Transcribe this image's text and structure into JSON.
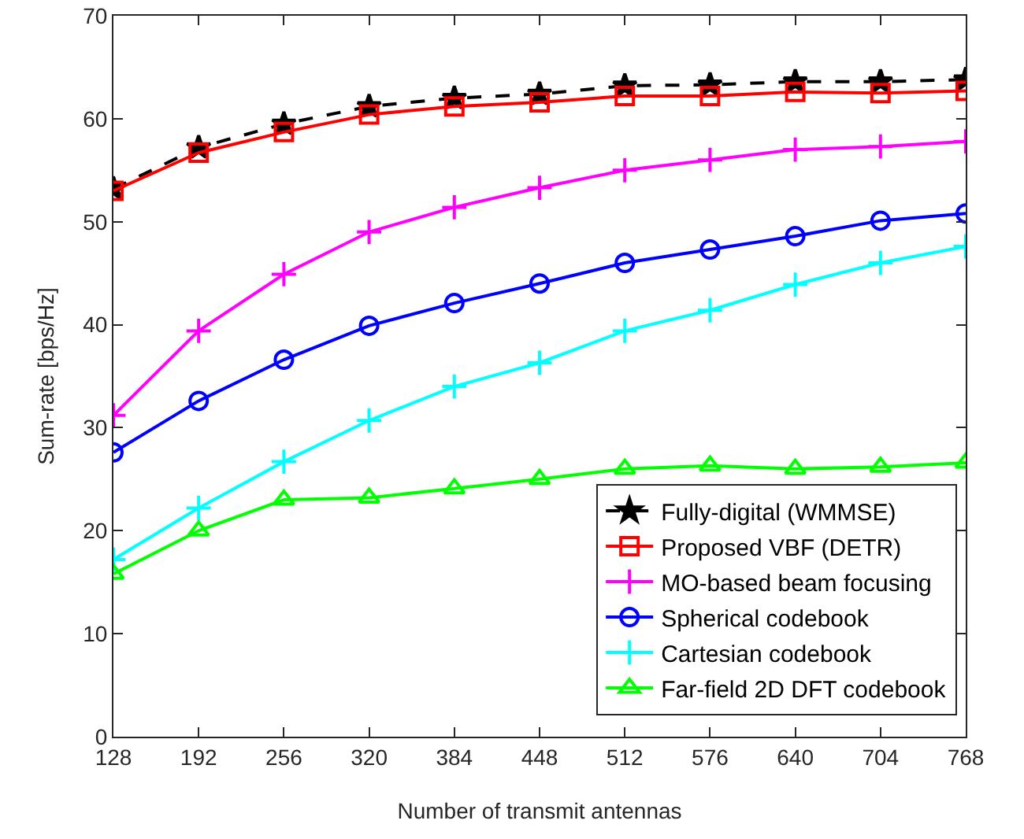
{
  "chart_data": {
    "type": "line",
    "xlabel": "Number of transmit antennas",
    "ylabel": "Sum-rate [bps/Hz]",
    "x": [
      128,
      192,
      256,
      320,
      384,
      448,
      512,
      576,
      640,
      704,
      768
    ],
    "xlim": [
      128,
      768
    ],
    "xticks": [
      128,
      192,
      256,
      320,
      384,
      448,
      512,
      576,
      640,
      704,
      768
    ],
    "ylim": [
      0,
      70
    ],
    "yticks": [
      0,
      10,
      20,
      30,
      40,
      50,
      60,
      70
    ],
    "grid": false,
    "legend": "bottom right",
    "series": [
      {
        "name": "Fully-digital (WMMSE)",
        "color": "#000000",
        "marker": "star",
        "line_style": "dashed",
        "values": [
          53.2,
          57.2,
          59.5,
          61.2,
          62.0,
          62.4,
          63.2,
          63.3,
          63.6,
          63.6,
          63.8
        ]
      },
      {
        "name": "Proposed VBF (DETR)",
        "color": "#ff0000",
        "marker": "square",
        "line_style": "solid",
        "values": [
          53.0,
          56.7,
          58.7,
          60.4,
          61.2,
          61.6,
          62.2,
          62.2,
          62.6,
          62.5,
          62.7
        ]
      },
      {
        "name": "MO-based beam focusing",
        "color": "#ff00ff",
        "marker": "cross",
        "line_style": "solid",
        "values": [
          31.2,
          39.4,
          44.9,
          49.0,
          51.4,
          53.3,
          55.0,
          56.0,
          57.0,
          57.3,
          57.8
        ]
      },
      {
        "name": "Spherical codebook",
        "color": "#0000ff",
        "marker": "circle",
        "line_style": "solid",
        "values": [
          27.6,
          32.6,
          36.6,
          39.9,
          42.1,
          44.0,
          46.0,
          47.3,
          48.6,
          50.1,
          50.8
        ]
      },
      {
        "name": "Cartesian codebook",
        "color": "#00ffff",
        "marker": "cross",
        "line_style": "solid",
        "values": [
          17.2,
          22.2,
          26.7,
          30.7,
          34.0,
          36.3,
          39.4,
          41.4,
          43.9,
          46.0,
          47.6
        ]
      },
      {
        "name": "Far-field 2D DFT codebook",
        "color": "#00ff00",
        "marker": "triangle",
        "line_style": "solid",
        "values": [
          15.8,
          20.0,
          23.0,
          23.2,
          24.1,
          25.0,
          26.0,
          26.3,
          26.0,
          26.2,
          26.6
        ]
      }
    ]
  }
}
